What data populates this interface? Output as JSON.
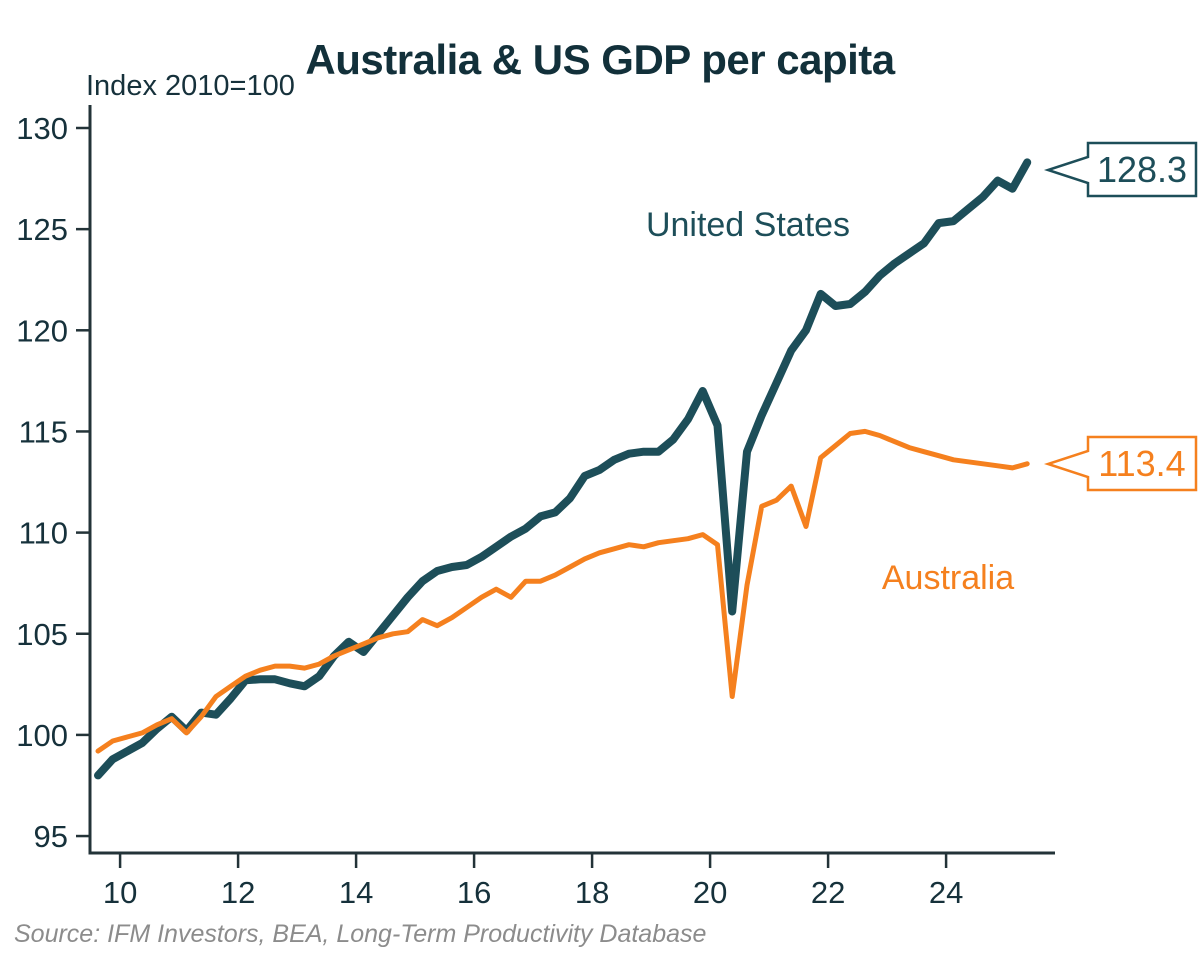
{
  "chart_data": {
    "type": "line",
    "title": "Australia & US GDP per capita",
    "subtitle": "Index 2010=100",
    "source": "Source: IFM Investors, BEA, Long-Term Productivity Database",
    "xlabel": "",
    "ylabel": "Index 2010=100",
    "grid": false,
    "legend_position": "inline-labels",
    "xlim": [
      9.49,
      25.85
    ],
    "ylim": [
      94.1,
      131.1
    ],
    "x_ticks": [
      10,
      12,
      14,
      16,
      18,
      20,
      22,
      24
    ],
    "y_ticks": [
      95,
      100,
      105,
      110,
      115,
      120,
      125,
      130
    ],
    "colors": {
      "united_states": "#1d4e59",
      "australia": "#f5801e",
      "axis": "#233338",
      "dark_text": "#16313b",
      "source_text": "#8c8c8c"
    },
    "x": [
      9.625,
      9.875,
      10.125,
      10.375,
      10.625,
      10.875,
      11.125,
      11.375,
      11.625,
      11.875,
      12.125,
      12.375,
      12.625,
      12.875,
      13.125,
      13.375,
      13.625,
      13.875,
      14.125,
      14.375,
      14.625,
      14.875,
      15.125,
      15.375,
      15.625,
      15.875,
      16.125,
      16.375,
      16.625,
      16.875,
      17.125,
      17.375,
      17.625,
      17.875,
      18.125,
      18.375,
      18.625,
      18.875,
      19.125,
      19.375,
      19.625,
      19.875,
      20.125,
      20.375,
      20.625,
      20.875,
      21.125,
      21.375,
      21.625,
      21.875,
      22.125,
      22.375,
      22.625,
      22.875,
      23.125,
      23.375,
      23.625,
      23.875,
      24.125,
      24.375,
      24.625,
      24.875,
      25.125,
      25.375
    ],
    "series": [
      {
        "name": "United States",
        "end_label": "128.3",
        "color": "#1d4e59",
        "values": [
          98.0,
          98.8,
          99.2,
          99.6,
          100.3,
          100.9,
          100.2,
          101.1,
          101.0,
          101.8,
          102.7,
          102.75,
          102.75,
          102.55,
          102.4,
          102.9,
          103.9,
          104.6,
          104.1,
          105.0,
          105.9,
          106.8,
          107.6,
          108.1,
          108.3,
          108.4,
          108.8,
          109.3,
          109.8,
          110.2,
          110.8,
          111.0,
          111.7,
          112.8,
          113.1,
          113.6,
          113.9,
          114.0,
          114.0,
          114.6,
          115.6,
          117.0,
          115.3,
          106.1,
          114.0,
          115.8,
          117.4,
          119.0,
          120.0,
          121.8,
          121.2,
          121.3,
          121.9,
          122.7,
          123.3,
          123.8,
          124.3,
          125.3,
          125.4,
          126.0,
          126.6,
          127.4,
          127.0,
          128.3
        ]
      },
      {
        "name": "Australia",
        "end_label": "113.4",
        "color": "#f5801e",
        "values": [
          99.2,
          99.7,
          99.9,
          100.1,
          100.5,
          100.8,
          100.1,
          100.9,
          101.9,
          102.4,
          102.9,
          103.2,
          103.4,
          103.4,
          103.3,
          103.5,
          103.9,
          104.2,
          104.5,
          104.8,
          105.0,
          105.1,
          105.7,
          105.4,
          105.8,
          106.3,
          106.8,
          107.2,
          106.8,
          107.6,
          107.6,
          107.9,
          108.3,
          108.7,
          109.0,
          109.2,
          109.4,
          109.3,
          109.5,
          109.6,
          109.7,
          109.9,
          109.4,
          101.9,
          107.4,
          111.3,
          111.6,
          112.3,
          110.3,
          113.7,
          114.3,
          114.9,
          115.0,
          114.8,
          114.5,
          114.2,
          114.0,
          113.8,
          113.6,
          113.5,
          113.4,
          113.3,
          113.2,
          113.4
        ]
      }
    ],
    "annotations": [
      {
        "text": "United States",
        "role": "series-label",
        "series": "United States"
      },
      {
        "text": "Australia",
        "role": "series-label",
        "series": "Australia"
      },
      {
        "text": "128.3",
        "role": "end-value-callout",
        "series": "United States"
      },
      {
        "text": "113.4",
        "role": "end-value-callout",
        "series": "Australia"
      }
    ]
  }
}
